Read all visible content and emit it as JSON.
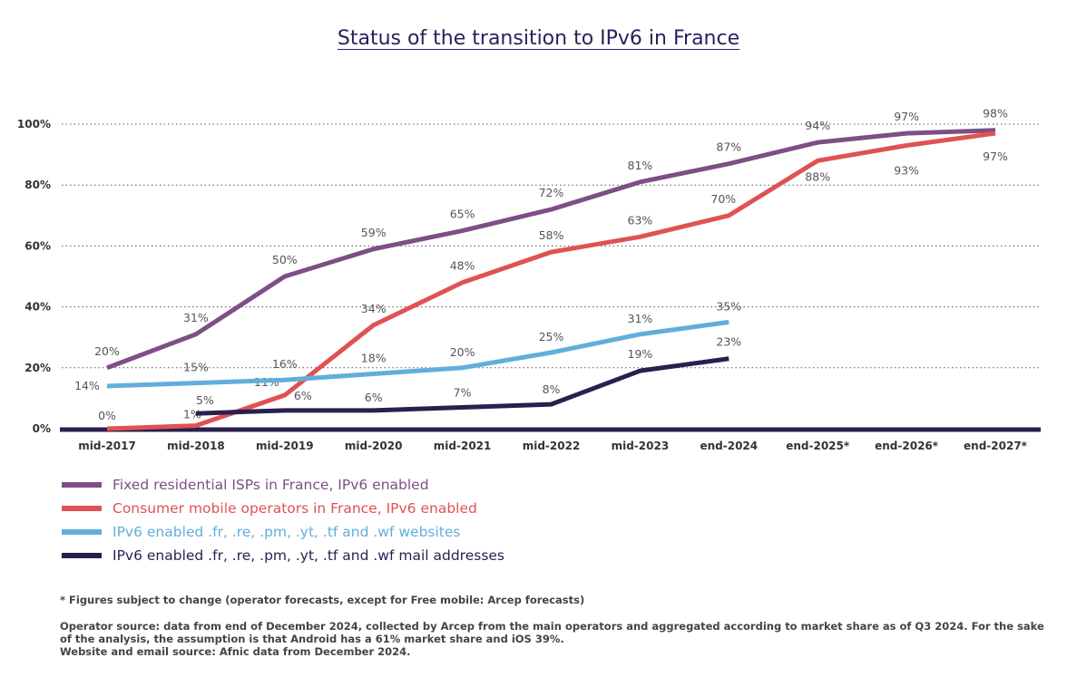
{
  "title": "Status of the transition to IPv6 in France",
  "chart_data": {
    "type": "line",
    "title": "Status of the transition to IPv6 in France",
    "categories": [
      "mid-2017",
      "mid-2018",
      "mid-2019",
      "mid-2020",
      "mid-2021",
      "mid-2022",
      "mid-2023",
      "end-2024",
      "end-2025*",
      "end-2026*",
      "end-2027*"
    ],
    "yticks": [
      "0%",
      "20%",
      "40%",
      "60%",
      "80%",
      "100%"
    ],
    "ylim": [
      0,
      100
    ],
    "grid": "horizontal dotted",
    "legend_position": "bottom",
    "series": [
      {
        "name": "Fixed residential ISPs in France, IPv6 enabled",
        "color": "#7d4f85",
        "values": [
          20,
          31,
          50,
          59,
          65,
          72,
          81,
          87,
          94,
          97,
          98
        ]
      },
      {
        "name": "Consumer mobile operators in France, IPv6 enabled",
        "color": "#e05252",
        "values": [
          0,
          1,
          11,
          34,
          48,
          58,
          63,
          70,
          88,
          93,
          97
        ]
      },
      {
        "name": "IPv6 enabled .fr, .re, .pm, .yt, .tf and .wf websites",
        "color": "#62aedb",
        "values": [
          14,
          15,
          16,
          18,
          20,
          25,
          31,
          35,
          null,
          null,
          null
        ]
      },
      {
        "name": "IPv6 enabled .fr, .re, .pm, .yt, .tf and .wf mail addresses",
        "color": "#2a1f4e",
        "values": [
          null,
          5,
          6,
          6,
          7,
          8,
          19,
          23,
          null,
          null,
          null
        ]
      }
    ]
  },
  "notes": {
    "forecast": "* Figures subject to change (operator forecasts, except for Free mobile: Arcep forecasts)",
    "source1": "Operator source: data from end of December 2024, collected by Arcep from the main operators and aggregated according to market share as of Q3 2024. For the sake of the analysis, the assumption is that Android has a 61% market share and iOS 39%.",
    "source2": "Website and email source: Afnic data from December 2024."
  }
}
